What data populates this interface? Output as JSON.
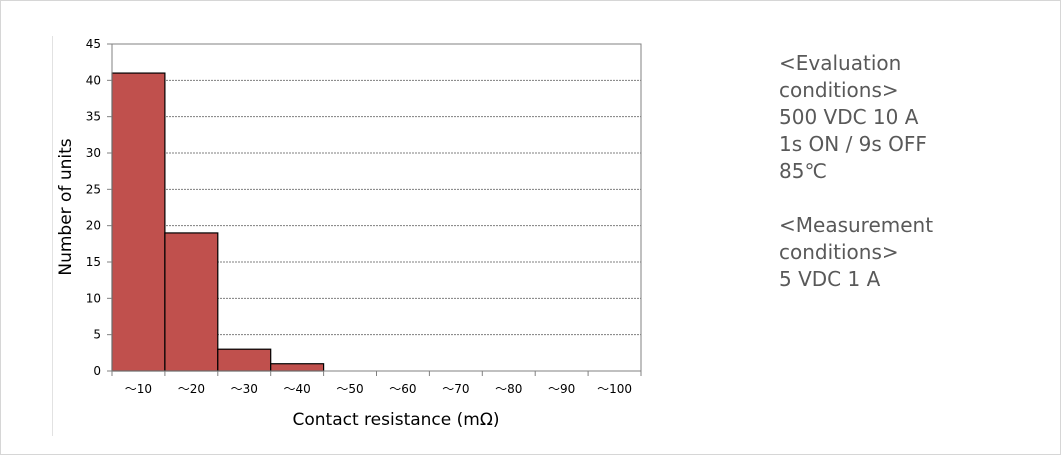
{
  "chart_data": {
    "type": "bar",
    "categories": [
      "～10",
      "～20",
      "～30",
      "～40",
      "～50",
      "～60",
      "～70",
      "～80",
      "～90",
      "～100"
    ],
    "values": [
      41,
      19,
      3,
      1,
      0,
      0,
      0,
      0,
      0,
      0
    ],
    "xlabel": "Contact resistance (mΩ)",
    "ylabel": "Number of units",
    "ylim": [
      0,
      45
    ],
    "yticks": [
      0,
      5,
      10,
      15,
      20,
      25,
      30,
      35,
      40,
      45
    ],
    "grid": true,
    "bar_color": "#c0504d"
  },
  "notes": {
    "evaluation": [
      "<Evaluation",
      "conditions>",
      "500 VDC 10 A",
      "1s ON / 9s OFF",
      "85℃"
    ],
    "measurement": [
      "<Measurement",
      "conditions>",
      "5 VDC 1 A"
    ]
  }
}
